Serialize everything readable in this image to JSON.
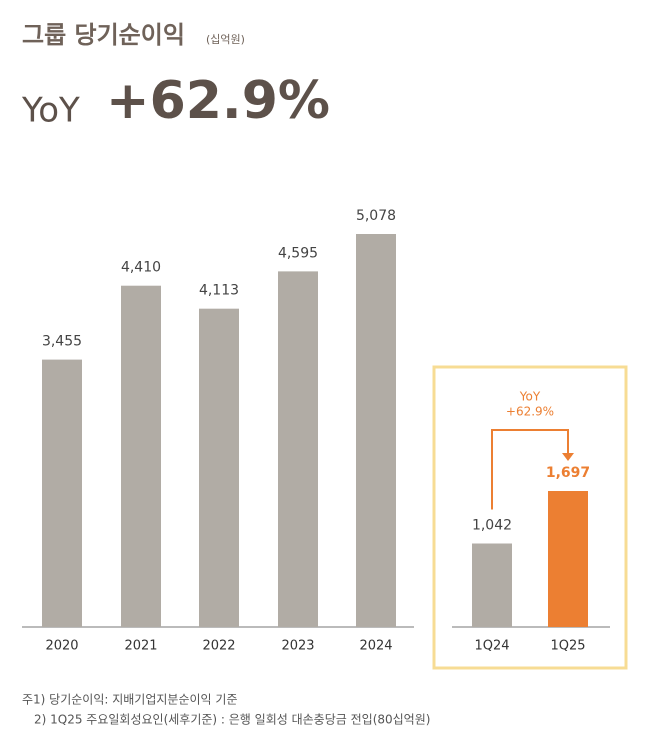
{
  "header": {
    "title": "그룹 당기순이익",
    "unit": "(십억원)",
    "yoy_label": "YoY",
    "yoy_value": "+62.9%"
  },
  "chart_data": [
    {
      "type": "bar",
      "categories": [
        "2020",
        "2021",
        "2022",
        "2023",
        "2024"
      ],
      "values": [
        3455,
        4410,
        4113,
        4595,
        5078
      ],
      "value_labels": [
        "3,455",
        "4,410",
        "4,113",
        "4,595",
        "5,078"
      ],
      "color": "#b1aca5"
    },
    {
      "type": "bar",
      "categories": [
        "1Q24",
        "1Q25"
      ],
      "values": [
        1042,
        1697
      ],
      "value_labels": [
        "1,042",
        "1,697"
      ],
      "colors": [
        "#b1aca5",
        "#ec7f32"
      ],
      "annotation": [
        "YoY",
        "+62.9%"
      ]
    }
  ],
  "footnotes": [
    "주1) 당기순이익: 지배기업지분순이익 기준",
    "2) 1Q25 주요일회성요인(세후기준) : 은행 일회성 대손충당금 전입(80십억원)"
  ]
}
